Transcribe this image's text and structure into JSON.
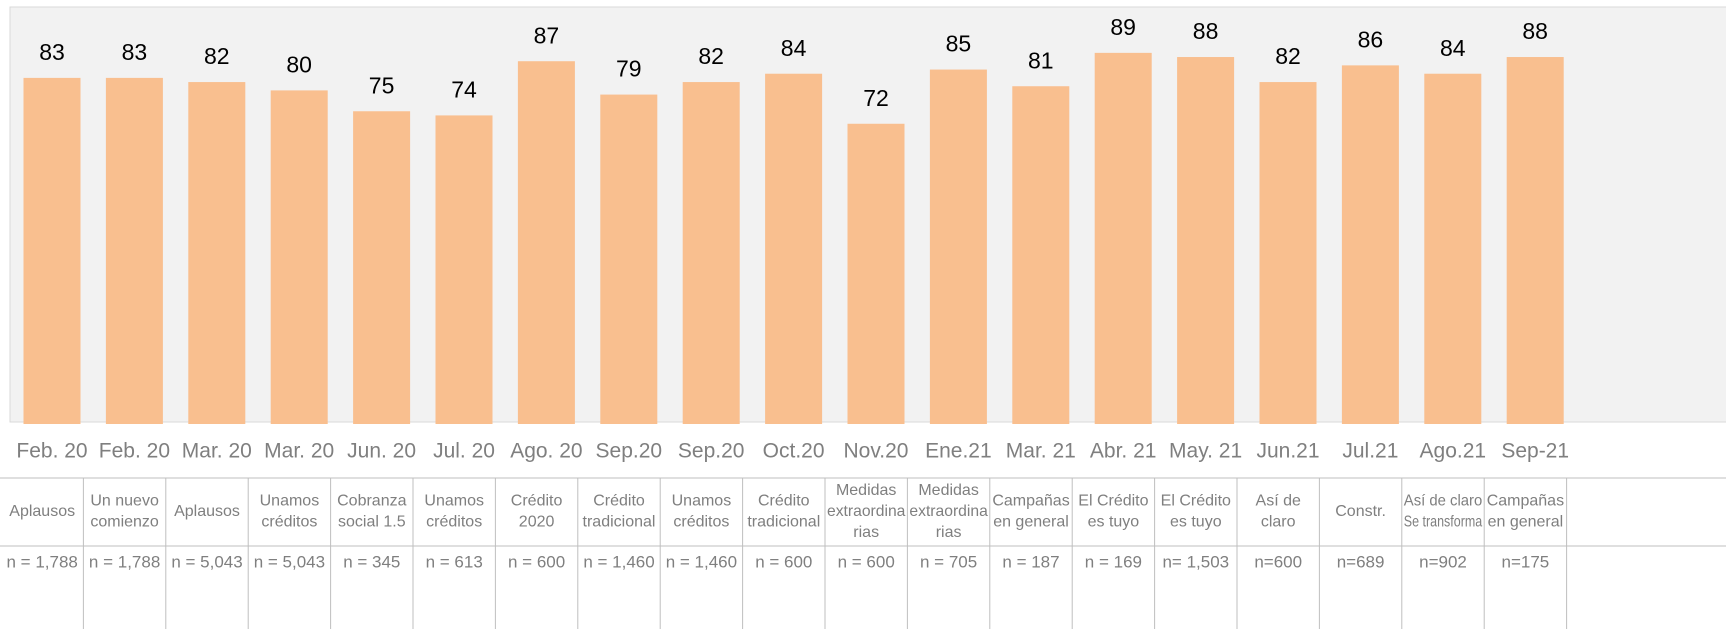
{
  "chart_data": {
    "type": "bar",
    "categories": [
      "Feb. 20",
      "Feb. 20",
      "Mar. 20",
      "Mar. 20",
      "Jun. 20",
      "Jul. 20",
      "Ago. 20",
      "Sep.20",
      "Sep.20",
      "Oct.20",
      "Nov.20",
      "Ene.21",
      "Mar. 21",
      "Abr. 21",
      "May. 21",
      "Jun.21",
      "Jul.21",
      "Ago.21",
      "Sep-21"
    ],
    "values": [
      83,
      83,
      82,
      80,
      75,
      74,
      87,
      79,
      82,
      84,
      72,
      85,
      81,
      89,
      88,
      82,
      86,
      84,
      88
    ],
    "color": "#f9bf8f",
    "ylim": [
      0,
      100
    ]
  },
  "table": {
    "rows": [
      [
        [
          "Aplausos"
        ],
        [
          "Un nuevo",
          "comienzo"
        ],
        [
          "Aplausos"
        ],
        [
          "Unamos",
          "créditos"
        ],
        [
          "Cobranza",
          "social 1.5"
        ],
        [
          "Unamos",
          "créditos"
        ],
        [
          "Crédito",
          "2020"
        ],
        [
          "Crédito",
          "tradicional"
        ],
        [
          "Unamos",
          "créditos"
        ],
        [
          "Crédito",
          "tradicional"
        ],
        [
          "Medidas",
          "extraordina",
          "rias"
        ],
        [
          "Medidas",
          "extraordina",
          "rias"
        ],
        [
          "Campañas",
          "en general"
        ],
        [
          "El Crédito",
          "es tuyo"
        ],
        [
          "El Crédito",
          "es tuyo"
        ],
        [
          "Así de",
          "claro"
        ],
        [
          "Constr."
        ],
        [
          "Así de claro",
          "Se transforma"
        ],
        [
          "Campañas",
          "en general"
        ]
      ],
      [
        "n = 1,788",
        "n = 1,788",
        "n = 5,043",
        "n = 5,043",
        "n = 345",
        "n = 613",
        "n = 600",
        "n = 1,460",
        "n = 1,460",
        "n = 600",
        "n = 600",
        "n = 705",
        "n = 187",
        "n = 169",
        "n= 1,503",
        "n=600",
        "n=689",
        "n=902",
        "n=175"
      ]
    ]
  }
}
